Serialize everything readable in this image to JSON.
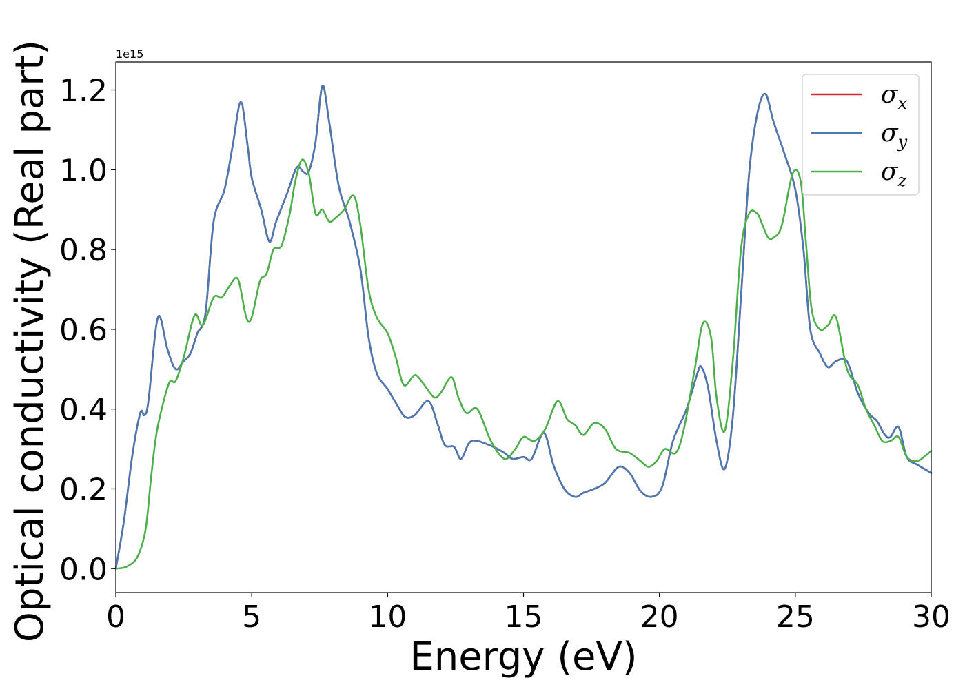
{
  "chart_data": {
    "type": "line",
    "title": "",
    "xlabel": "Energy (eV)",
    "ylabel": "Optical conductivity (Real part)",
    "y_offset_label": "1e15",
    "xlim": [
      0,
      30
    ],
    "ylim": [
      -0.06,
      1.27
    ],
    "xticks": [
      0,
      5,
      10,
      15,
      20,
      25,
      30
    ],
    "xtick_labels": [
      "0",
      "5",
      "10",
      "15",
      "20",
      "25",
      "30"
    ],
    "yticks": [
      0.0,
      0.2,
      0.4,
      0.6,
      0.8,
      1.0,
      1.2
    ],
    "ytick_labels": [
      "0.0",
      "0.2",
      "0.4",
      "0.6",
      "0.8",
      "1.0",
      "1.2"
    ],
    "grid": false,
    "legend_position": "top-right",
    "series": [
      {
        "name": "σx",
        "symbol": "σ",
        "subscript": "x",
        "color": "#d62728",
        "x": [
          0,
          0.3,
          0.6,
          0.9,
          1.05,
          1.2,
          1.55,
          1.9,
          2.2,
          2.5,
          2.75,
          3.0,
          3.3,
          3.6,
          4.0,
          4.3,
          4.6,
          4.85,
          5.0,
          5.35,
          5.65,
          5.9,
          6.3,
          6.65,
          6.9,
          7.1,
          7.35,
          7.6,
          7.85,
          8.2,
          8.6,
          9.0,
          9.3,
          9.6,
          10.0,
          10.35,
          10.65,
          11.0,
          11.5,
          11.85,
          12.1,
          12.45,
          12.7,
          13.0,
          13.3,
          13.9,
          14.3,
          14.6,
          15.0,
          15.3,
          15.75,
          16.1,
          16.5,
          16.9,
          17.2,
          17.6,
          18.0,
          18.5,
          18.9,
          19.3,
          19.7,
          20.1,
          20.5,
          21.0,
          21.4,
          21.55,
          21.8,
          22.1,
          22.4,
          22.7,
          23.0,
          23.3,
          23.6,
          23.9,
          24.2,
          24.6,
          25.0,
          25.3,
          25.55,
          25.9,
          26.2,
          26.5,
          26.9,
          27.3,
          27.7,
          28.0,
          28.3,
          28.5,
          28.8,
          29.1,
          29.5,
          30.0
        ],
        "values": [
          0.0,
          0.12,
          0.28,
          0.39,
          0.385,
          0.42,
          0.63,
          0.55,
          0.5,
          0.52,
          0.54,
          0.59,
          0.64,
          0.87,
          0.95,
          1.06,
          1.17,
          1.06,
          0.98,
          0.9,
          0.82,
          0.87,
          0.94,
          1.005,
          0.995,
          0.995,
          1.07,
          1.21,
          1.12,
          0.96,
          0.87,
          0.75,
          0.58,
          0.49,
          0.45,
          0.41,
          0.38,
          0.385,
          0.42,
          0.36,
          0.31,
          0.305,
          0.275,
          0.315,
          0.32,
          0.305,
          0.29,
          0.275,
          0.28,
          0.275,
          0.34,
          0.26,
          0.2,
          0.18,
          0.19,
          0.2,
          0.215,
          0.255,
          0.24,
          0.195,
          0.18,
          0.205,
          0.32,
          0.4,
          0.49,
          0.505,
          0.45,
          0.32,
          0.25,
          0.38,
          0.68,
          0.99,
          1.14,
          1.19,
          1.12,
          1.04,
          0.95,
          0.8,
          0.6,
          0.54,
          0.505,
          0.52,
          0.52,
          0.44,
          0.39,
          0.37,
          0.335,
          0.33,
          0.355,
          0.28,
          0.26,
          0.24
        ]
      },
      {
        "name": "σy",
        "symbol": "σ",
        "subscript": "y",
        "color": "#4a78b0",
        "x": [
          0,
          0.3,
          0.6,
          0.9,
          1.05,
          1.2,
          1.55,
          1.9,
          2.2,
          2.5,
          2.75,
          3.0,
          3.3,
          3.6,
          4.0,
          4.3,
          4.6,
          4.85,
          5.0,
          5.35,
          5.65,
          5.9,
          6.3,
          6.65,
          6.9,
          7.1,
          7.35,
          7.6,
          7.85,
          8.2,
          8.6,
          9.0,
          9.3,
          9.6,
          10.0,
          10.35,
          10.65,
          11.0,
          11.5,
          11.85,
          12.1,
          12.45,
          12.7,
          13.0,
          13.3,
          13.9,
          14.3,
          14.6,
          15.0,
          15.3,
          15.75,
          16.1,
          16.5,
          16.9,
          17.2,
          17.6,
          18.0,
          18.5,
          18.9,
          19.3,
          19.7,
          20.1,
          20.5,
          21.0,
          21.4,
          21.55,
          21.8,
          22.1,
          22.4,
          22.7,
          23.0,
          23.3,
          23.6,
          23.9,
          24.2,
          24.6,
          25.0,
          25.3,
          25.55,
          25.9,
          26.2,
          26.5,
          26.9,
          27.3,
          27.7,
          28.0,
          28.3,
          28.5,
          28.8,
          29.1,
          29.5,
          30.0
        ],
        "values": [
          0.0,
          0.12,
          0.28,
          0.39,
          0.385,
          0.42,
          0.63,
          0.55,
          0.5,
          0.52,
          0.54,
          0.59,
          0.64,
          0.87,
          0.95,
          1.06,
          1.17,
          1.06,
          0.98,
          0.9,
          0.82,
          0.87,
          0.94,
          1.005,
          0.995,
          0.995,
          1.07,
          1.21,
          1.12,
          0.96,
          0.87,
          0.75,
          0.58,
          0.49,
          0.45,
          0.41,
          0.38,
          0.385,
          0.42,
          0.36,
          0.31,
          0.305,
          0.275,
          0.315,
          0.32,
          0.305,
          0.29,
          0.275,
          0.28,
          0.275,
          0.34,
          0.26,
          0.2,
          0.18,
          0.19,
          0.2,
          0.215,
          0.255,
          0.24,
          0.195,
          0.18,
          0.205,
          0.32,
          0.4,
          0.49,
          0.505,
          0.45,
          0.32,
          0.25,
          0.38,
          0.68,
          0.99,
          1.14,
          1.19,
          1.12,
          1.04,
          0.95,
          0.8,
          0.6,
          0.54,
          0.505,
          0.52,
          0.52,
          0.44,
          0.39,
          0.37,
          0.335,
          0.33,
          0.355,
          0.28,
          0.26,
          0.24
        ]
      },
      {
        "name": "σz",
        "symbol": "σ",
        "subscript": "z",
        "color": "#4daf4a",
        "x": [
          0,
          0.4,
          0.8,
          1.1,
          1.3,
          1.5,
          1.8,
          2.0,
          2.2,
          2.5,
          2.9,
          3.2,
          3.6,
          3.9,
          4.2,
          4.5,
          4.8,
          5.0,
          5.3,
          5.55,
          5.8,
          6.1,
          6.4,
          6.6,
          6.85,
          7.1,
          7.35,
          7.6,
          7.85,
          8.1,
          8.4,
          8.75,
          9.0,
          9.3,
          9.6,
          10.0,
          10.3,
          10.6,
          11.0,
          11.3,
          11.7,
          11.95,
          12.35,
          12.6,
          12.9,
          13.3,
          13.8,
          14.3,
          14.7,
          15.0,
          15.4,
          15.8,
          16.25,
          16.6,
          16.9,
          17.2,
          17.6,
          18.0,
          18.4,
          18.9,
          19.3,
          19.6,
          19.9,
          20.2,
          20.6,
          20.9,
          21.3,
          21.6,
          21.9,
          22.1,
          22.4,
          22.7,
          23.0,
          23.3,
          23.6,
          23.8,
          24.0,
          24.2,
          24.5,
          24.9,
          25.2,
          25.4,
          25.6,
          25.9,
          26.2,
          26.5,
          26.9,
          27.3,
          27.6,
          27.9,
          28.2,
          28.5,
          28.8,
          29.1,
          29.5,
          30.0
        ],
        "values": [
          0.0,
          0.005,
          0.03,
          0.1,
          0.23,
          0.34,
          0.43,
          0.47,
          0.47,
          0.53,
          0.635,
          0.61,
          0.68,
          0.68,
          0.71,
          0.725,
          0.63,
          0.63,
          0.72,
          0.74,
          0.8,
          0.81,
          0.89,
          0.97,
          1.025,
          0.99,
          0.89,
          0.9,
          0.87,
          0.88,
          0.9,
          0.935,
          0.86,
          0.7,
          0.63,
          0.59,
          0.53,
          0.46,
          0.485,
          0.465,
          0.43,
          0.44,
          0.48,
          0.43,
          0.39,
          0.4,
          0.32,
          0.275,
          0.3,
          0.33,
          0.32,
          0.35,
          0.42,
          0.375,
          0.36,
          0.335,
          0.365,
          0.35,
          0.3,
          0.29,
          0.27,
          0.255,
          0.27,
          0.3,
          0.29,
          0.35,
          0.5,
          0.615,
          0.58,
          0.43,
          0.345,
          0.52,
          0.8,
          0.89,
          0.89,
          0.86,
          0.83,
          0.83,
          0.86,
          0.99,
          0.97,
          0.81,
          0.65,
          0.6,
          0.61,
          0.63,
          0.5,
          0.46,
          0.4,
          0.36,
          0.32,
          0.32,
          0.33,
          0.28,
          0.27,
          0.295
        ]
      }
    ]
  }
}
